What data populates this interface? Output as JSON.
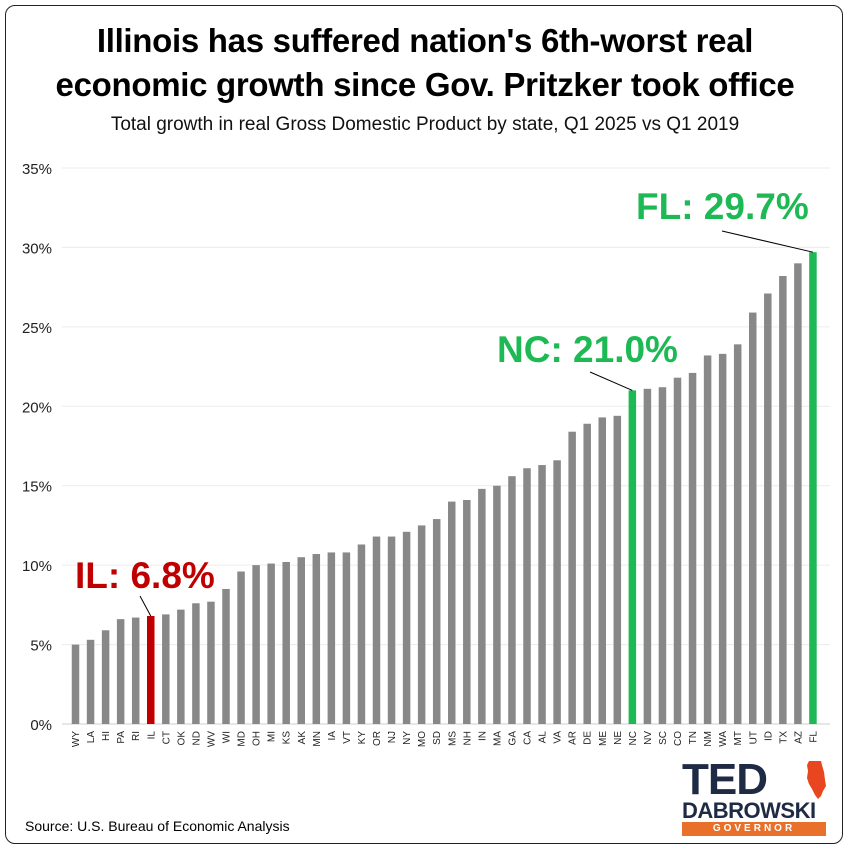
{
  "chart_data": {
    "type": "bar",
    "title_line1": "Illinois has suffered nation's 6th-worst real",
    "title_line2": "economic growth since Gov. Pritzker took office",
    "subtitle": "Total growth in real Gross Domestic Product by state, Q1 2025 vs Q1 2019",
    "categories": [
      "WY",
      "LA",
      "HI",
      "PA",
      "RI",
      "IL",
      "CT",
      "OK",
      "ND",
      "WV",
      "WI",
      "MD",
      "OH",
      "MI",
      "KS",
      "AK",
      "MN",
      "IA",
      "VT",
      "KY",
      "OR",
      "NJ",
      "NY",
      "MO",
      "SD",
      "MS",
      "NH",
      "IN",
      "MA",
      "GA",
      "CA",
      "AL",
      "VA",
      "AR",
      "DE",
      "ME",
      "NE",
      "NC",
      "NV",
      "SC",
      "CO",
      "TN",
      "NM",
      "WA",
      "MT",
      "UT",
      "ID",
      "TX",
      "AZ",
      "FL"
    ],
    "values": [
      5.0,
      5.3,
      5.9,
      6.6,
      6.7,
      6.8,
      6.9,
      7.2,
      7.6,
      7.7,
      8.5,
      9.6,
      10.0,
      10.1,
      10.2,
      10.5,
      10.7,
      10.8,
      10.8,
      11.3,
      11.8,
      11.8,
      12.1,
      12.5,
      12.9,
      14.0,
      14.1,
      14.8,
      15.0,
      15.6,
      16.1,
      16.3,
      16.6,
      18.4,
      18.9,
      19.3,
      19.4,
      21.0,
      21.1,
      21.2,
      21.8,
      22.1,
      23.2,
      23.3,
      23.9,
      25.9,
      27.1,
      28.2,
      29.0,
      29.7
    ],
    "yticks": [
      "0%",
      "5%",
      "10%",
      "15%",
      "20%",
      "25%",
      "30%",
      "35%"
    ],
    "ylim": [
      0,
      35
    ],
    "colors": {
      "default": "#888888",
      "highlight_red": "#c00000",
      "highlight_green": "#1db954"
    },
    "highlights": {
      "IL": "#c00000",
      "NC": "#1db954",
      "FL": "#1db954"
    },
    "annotations": [
      {
        "state": "IL",
        "text": "IL: 6.8%",
        "color": "#c00000"
      },
      {
        "state": "NC",
        "text": "NC: 21.0%",
        "color": "#1db954"
      },
      {
        "state": "FL",
        "text": "FL: 29.7%",
        "color": "#1db954"
      }
    ]
  },
  "source": "Source: U.S. Bureau of Economic Analysis",
  "logo": {
    "line1": "TED",
    "line2": "DABROWSKI",
    "line3": "GOVERNOR"
  }
}
